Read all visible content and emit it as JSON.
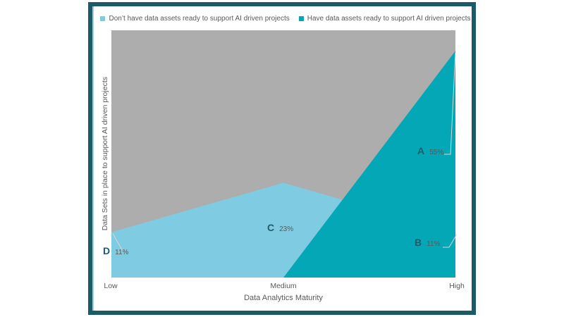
{
  "chart_data": {
    "type": "area",
    "categories": [
      "Low",
      "Medium",
      "High"
    ],
    "series": [
      {
        "name": "Don’t have data assets ready to support AI driven projects",
        "values": [
          11,
          23,
          11
        ],
        "color": "#7fcbe1"
      },
      {
        "name": "Have data assets ready to support AI driven projects",
        "values": [
          0,
          0,
          55
        ],
        "color": "#03a7b5"
      }
    ],
    "title": "",
    "xlabel": "Data Analytics Maturity",
    "ylabel": "Data Sets in place to support AI driven projects",
    "ylim": [
      0,
      60
    ],
    "grid": "off",
    "legend_position": "top",
    "plot_bg": "#adadad",
    "annotations": [
      {
        "letter": "A",
        "value": "55%",
        "series": "Have data assets ready to support AI driven projects",
        "category": "High"
      },
      {
        "letter": "B",
        "value": "11%",
        "series": "Don’t have data assets ready to support AI driven projects",
        "category": "High"
      },
      {
        "letter": "C",
        "value": "23%",
        "series": "Don’t have data assets ready to support AI driven projects",
        "category": "Medium"
      },
      {
        "letter": "D",
        "value": "11%",
        "series": "Don’t have data assets ready to support AI driven projects",
        "category": "Low"
      }
    ]
  },
  "colors": {
    "frame": "#1d5a68",
    "annotation_letter": "#1f5c6b",
    "axis_text": "#595959",
    "leader_line": "#d4d8d8"
  }
}
